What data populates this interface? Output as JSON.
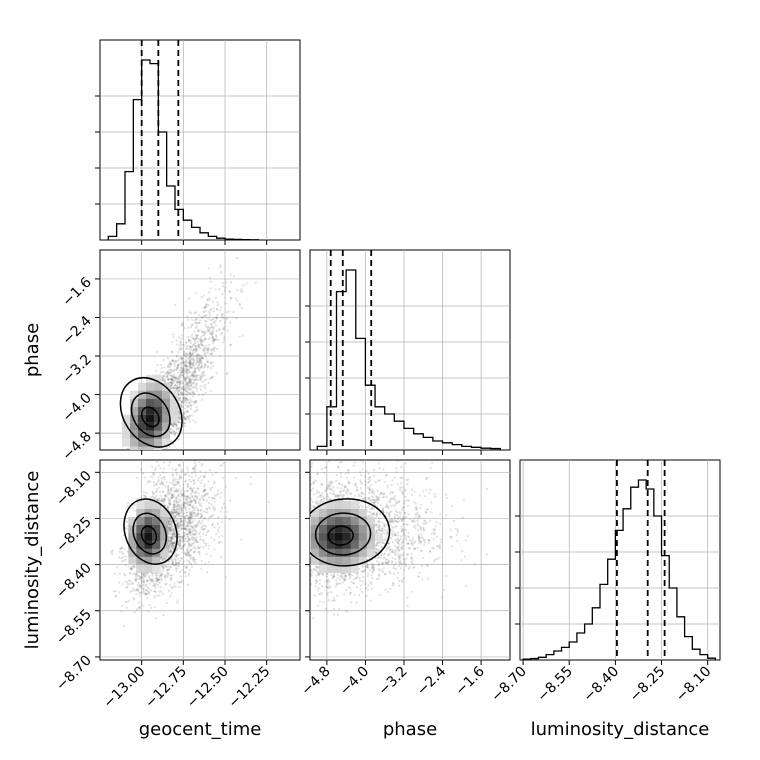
{
  "chart_data": {
    "type": "corner",
    "parameters": [
      "geocent_time",
      "phase",
      "luminosity_distance"
    ],
    "axes": {
      "geocent_time": {
        "label": "geocent_time",
        "range": [
          -13.25,
          -12.05
        ],
        "ticks": [
          -13.0,
          -12.75,
          -12.5,
          -12.25
        ],
        "tick_labels": [
          "−13.00",
          "−12.75",
          "−12.50",
          "−12.25"
        ]
      },
      "phase": {
        "label": "phase",
        "range": [
          -5.15,
          -1.0
        ],
        "ticks": [
          -4.8,
          -4.0,
          -3.2,
          -2.4,
          -1.6
        ],
        "tick_labels": [
          "−4.8",
          "−4.0",
          "−3.2",
          "−2.4",
          "−1.6"
        ]
      },
      "luminosity_distance": {
        "label": "luminosity_distance",
        "range": [
          -8.71,
          -8.06
        ],
        "ticks": [
          -8.7,
          -8.55,
          -8.4,
          -8.25,
          -8.1
        ],
        "tick_labels": [
          "−8.70",
          "−8.55",
          "−8.40",
          "−8.25",
          "−8.10"
        ]
      }
    },
    "histograms": [
      {
        "param": "geocent_time",
        "bin_edges": [
          -13.2,
          -13.15,
          -13.1,
          -13.05,
          -13.0,
          -12.95,
          -12.9,
          -12.85,
          -12.8,
          -12.75,
          -12.7,
          -12.65,
          -12.6,
          -12.55,
          -12.5,
          -12.45,
          -12.4,
          -12.35,
          -12.3
        ],
        "counts": [
          0.02,
          0.09,
          0.38,
          0.78,
          1.0,
          0.98,
          0.6,
          0.3,
          0.17,
          0.11,
          0.07,
          0.04,
          0.02,
          0.01,
          0.005,
          0.003,
          0.002,
          0.001
        ],
        "quantiles": [
          -13.0,
          -12.9,
          -12.78
        ]
      },
      {
        "param": "phase",
        "bin_edges": [
          -5.0,
          -4.8,
          -4.6,
          -4.4,
          -4.2,
          -4.0,
          -3.8,
          -3.6,
          -3.4,
          -3.2,
          -3.0,
          -2.8,
          -2.6,
          -2.4,
          -2.2,
          -2.0,
          -1.8,
          -1.6,
          -1.4,
          -1.2
        ],
        "counts": [
          0.02,
          0.24,
          0.88,
          1.0,
          0.62,
          0.36,
          0.24,
          0.2,
          0.16,
          0.12,
          0.09,
          0.07,
          0.05,
          0.04,
          0.03,
          0.02,
          0.015,
          0.01,
          0.008
        ],
        "quantiles": [
          -4.72,
          -4.47,
          -3.88
        ]
      },
      {
        "param": "luminosity_distance",
        "bin_edges": [
          -8.7,
          -8.675,
          -8.65,
          -8.625,
          -8.6,
          -8.575,
          -8.55,
          -8.525,
          -8.5,
          -8.475,
          -8.45,
          -8.425,
          -8.4,
          -8.375,
          -8.35,
          -8.325,
          -8.3,
          -8.275,
          -8.25,
          -8.225,
          -8.2,
          -8.175,
          -8.15,
          -8.125,
          -8.1,
          -8.075
        ],
        "counts": [
          0.005,
          0.008,
          0.015,
          0.03,
          0.05,
          0.07,
          0.1,
          0.15,
          0.2,
          0.29,
          0.42,
          0.56,
          0.72,
          0.84,
          0.96,
          1.0,
          0.95,
          0.8,
          0.58,
          0.4,
          0.24,
          0.13,
          0.06,
          0.03,
          0.01
        ],
        "quantiles": [
          -8.395,
          -8.295,
          -8.24
        ]
      }
    ],
    "scatter_2d": [
      {
        "x_param": "geocent_time",
        "y_param": "phase",
        "x_mean": -12.86,
        "x_sd": 0.11,
        "y_mean": -4.45,
        "y_sd": 0.6,
        "correlation": 0.88,
        "points": 2500,
        "peak": [
          -12.95,
          -4.5
        ]
      },
      {
        "x_param": "geocent_time",
        "y_param": "luminosity_distance",
        "x_mean": -12.88,
        "x_sd": 0.1,
        "y_mean": -8.31,
        "y_sd": 0.085,
        "correlation": 0.45,
        "points": 2500,
        "peak": [
          -12.96,
          -8.31
        ]
      },
      {
        "x_param": "phase",
        "y_param": "luminosity_distance",
        "x_mean": -4.45,
        "x_sd": 0.6,
        "y_mean": -8.31,
        "y_sd": 0.085,
        "correlation": 0.1,
        "points": 2500,
        "peak": [
          -4.55,
          -8.31
        ]
      }
    ],
    "grid": true,
    "colors": {
      "line": "#000000",
      "points": "#555555",
      "grid": "#b0b0b0"
    }
  }
}
